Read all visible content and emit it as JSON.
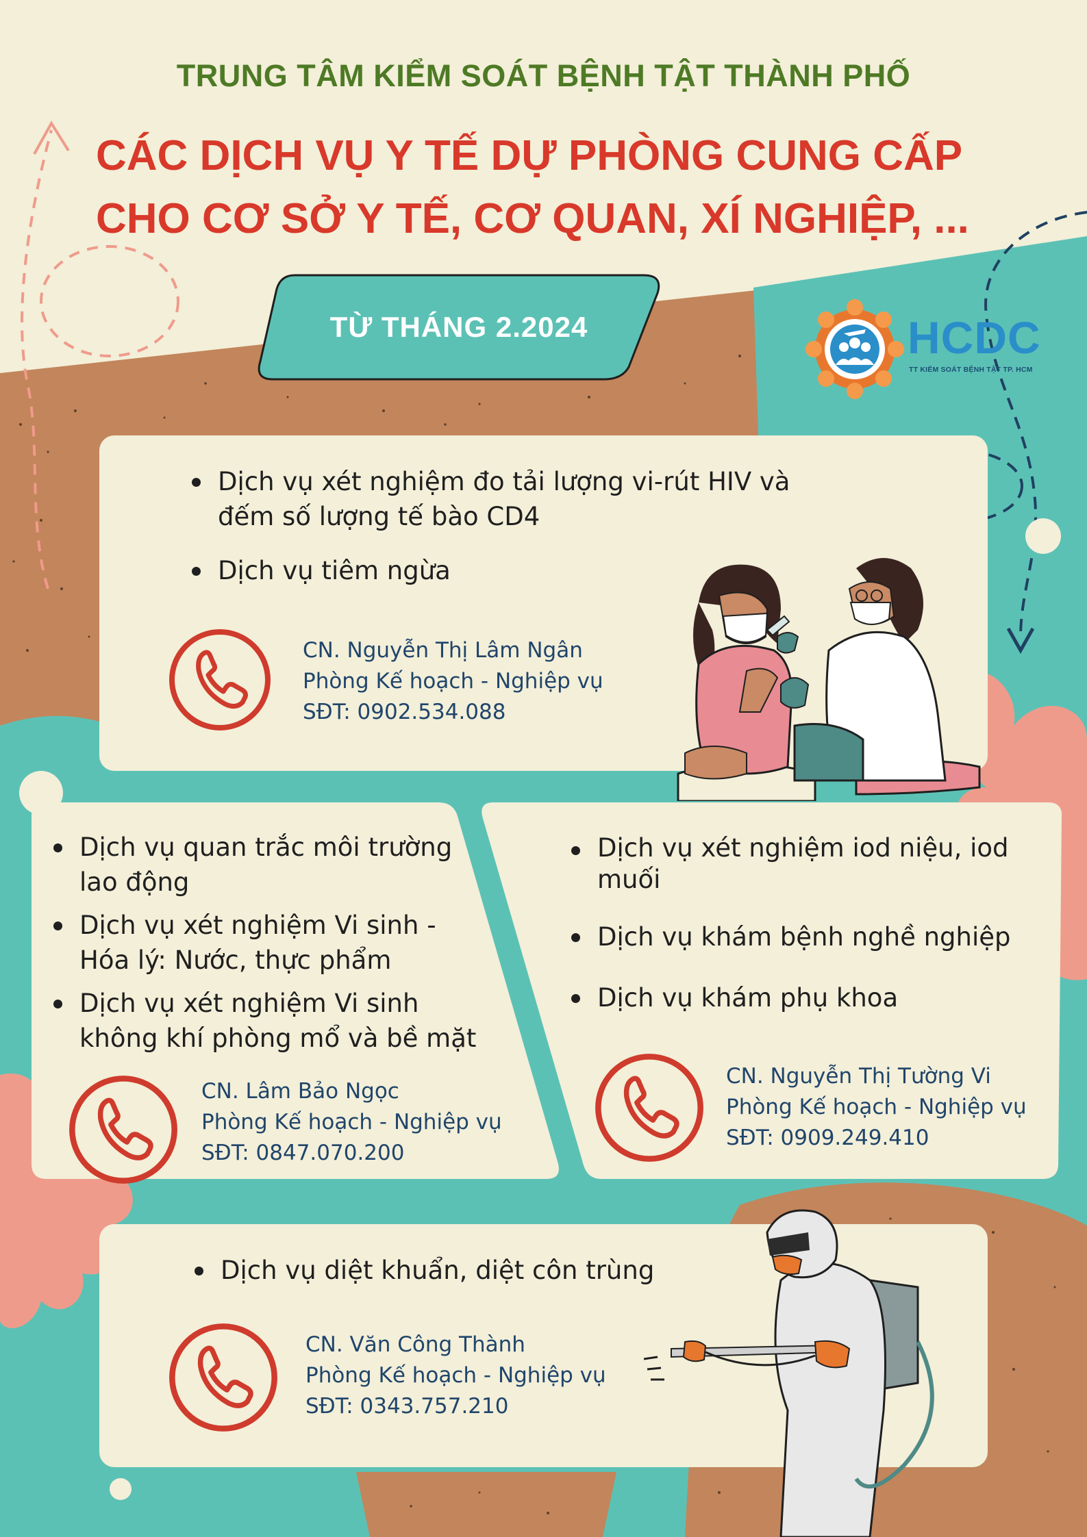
{
  "header": {
    "org_name": "TRUNG TÂM KIỂM SOÁT BỆNH TẬT THÀNH PHỐ",
    "title_line1": "CÁC DỊCH VỤ Y TẾ DỰ PHÒNG CUNG CẤP",
    "title_line2": "CHO CƠ SỞ Y TẾ, CƠ QUAN, XÍ NGHIỆP, ...",
    "date_badge": "TỪ THÁNG 2.2024"
  },
  "logo": {
    "name": "HCDC",
    "subtitle": "TT KIỂM SOÁT BỆNH TẬT TP. HCM"
  },
  "colors": {
    "background": "#f3efd9",
    "teal": "#5cc1b5",
    "brown": "#c3855b",
    "title_red": "#d8392a",
    "org_green": "#4e7a25",
    "contact_navy": "#20456b",
    "phone_red": "#cf3b2c",
    "coral": "#ef9b8b"
  },
  "sections": [
    {
      "services": [
        "Dịch vụ xét nghiệm đo tải lượng vi-rút HIV và đếm số lượng tế bào CD4",
        "Dịch vụ tiêm ngừa"
      ],
      "contact": {
        "name": "CN.  Nguyễn Thị Lâm Ngân",
        "department": "Phòng Kế hoạch - Nghiệp vụ",
        "phone": "SĐT: 0902.534.088"
      },
      "icon": "phone-icon"
    },
    {
      "services": [
        "Dịch vụ quan trắc môi trường lao động",
        "Dịch vụ xét nghiệm Vi sinh - Hóa lý: Nước, thực phẩm",
        "Dịch vụ xét nghiệm Vi sinh không khí phòng mổ và bề mặt"
      ],
      "contact": {
        "name": "CN.  Lâm Bảo Ngọc",
        "department": "Phòng Kế hoạch - Nghiệp vụ",
        "phone": "SĐT: 0847.070.200"
      },
      "icon": "phone-icon"
    },
    {
      "services": [
        "Dịch vụ xét nghiệm iod niệu, iod muối",
        "Dịch vụ khám bệnh nghề nghiệp",
        "Dịch vụ khám phụ khoa"
      ],
      "contact": {
        "name": "CN.  Nguyễn Thị Tường Vi",
        "department": "Phòng Kế hoạch - Nghiệp vụ",
        "phone": "SĐT: 0909.249.410"
      },
      "icon": "phone-icon"
    },
    {
      "services": [
        "Dịch vụ diệt khuẩn, diệt côn trùng"
      ],
      "contact": {
        "name": "CN.  Văn Công Thành",
        "department": "Phòng Kế hoạch - Nghiệp vụ",
        "phone": "SĐT: 0343.757.210"
      },
      "icon": "phone-icon"
    }
  ]
}
